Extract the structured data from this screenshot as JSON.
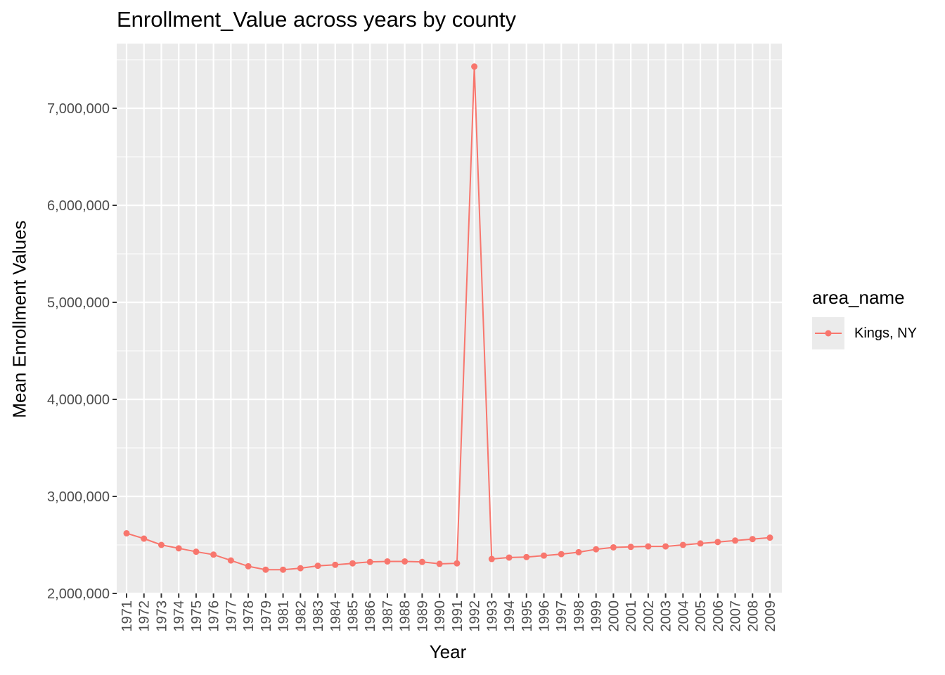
{
  "colors": {
    "panel": "#EBEBEB",
    "grid": "#FFFFFF",
    "series": "#F8766D",
    "tick_text": "#4D4D4D",
    "tick_mark": "#333333"
  },
  "chart_data": {
    "type": "line",
    "title": "Enrollment_Value across years by county",
    "xlabel": "Year",
    "ylabel": "Mean Enrollment Values",
    "ylim": [
      2000000,
      7500000
    ],
    "yticks": [
      2000000,
      3000000,
      4000000,
      5000000,
      6000000,
      7000000
    ],
    "ytick_labels": [
      "2,000,000",
      "3,000,000",
      "4,000,000",
      "5,000,000",
      "6,000,000",
      "7,000,000"
    ],
    "grid": true,
    "legend": {
      "title": "area_name",
      "position": "right"
    },
    "categories": [
      "1971",
      "1972",
      "1973",
      "1974",
      "1975",
      "1976",
      "1977",
      "1978",
      "1979",
      "1981",
      "1982",
      "1983",
      "1984",
      "1985",
      "1986",
      "1987",
      "1988",
      "1989",
      "1990",
      "1991",
      "1992",
      "1993",
      "1994",
      "1995",
      "1996",
      "1997",
      "1998",
      "1999",
      "2000",
      "2001",
      "2002",
      "2003",
      "2004",
      "2005",
      "2006",
      "2007",
      "2008",
      "2009"
    ],
    "series": [
      {
        "name": "Kings, NY",
        "values": [
          2620000,
          2565000,
          2500000,
          2465000,
          2430000,
          2400000,
          2340000,
          2280000,
          2245000,
          2245000,
          2260000,
          2285000,
          2295000,
          2310000,
          2325000,
          2330000,
          2330000,
          2325000,
          2305000,
          2310000,
          7430000,
          2355000,
          2370000,
          2375000,
          2390000,
          2405000,
          2425000,
          2455000,
          2475000,
          2480000,
          2485000,
          2485000,
          2500000,
          2515000,
          2530000,
          2545000,
          2560000,
          2575000
        ]
      }
    ]
  }
}
